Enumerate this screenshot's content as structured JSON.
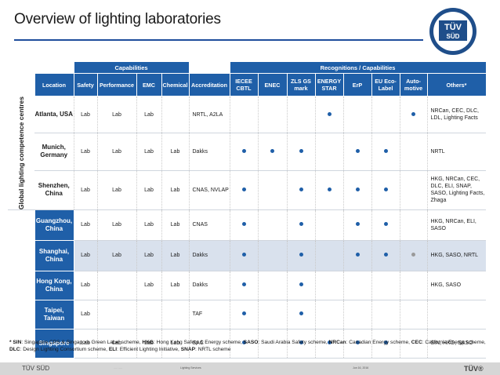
{
  "title": "Overview of lighting laboratories",
  "logo": {
    "text": "TÜV SÜD"
  },
  "headers": {
    "capabilities": "Capabilities",
    "recognitions": "Recognitions / Capabilities",
    "location": "Location",
    "safety": "Safety",
    "performance": "Performance",
    "emc": "EMC",
    "chemical": "Chemical",
    "accreditation": "Accreditation",
    "iecee": "IECEE CBTL",
    "enec": "ENEC",
    "zls": "ZLS GS mark",
    "energy": "ENERGY STAR",
    "erp": "ErP",
    "eu": "EU Eco-Label",
    "auto": "Auto-motive",
    "others": "Others*"
  },
  "side_label": "Global lighting competence centres",
  "rows": [
    {
      "loc": "Atlanta, USA",
      "safety": "Lab",
      "perf": "Lab",
      "emc": "Lab",
      "chem": "",
      "acc": "NRTL, A2LA",
      "iecee": false,
      "enec": false,
      "zls": false,
      "energy": true,
      "erp": false,
      "eu": false,
      "auto": "blue",
      "others": "NRCan, CEC, DLC, LDL, Lighting Facts"
    },
    {
      "loc": "Munich, Germany",
      "safety": "Lab",
      "perf": "Lab",
      "emc": "Lab",
      "chem": "Lab",
      "acc": "Dakks",
      "iecee": true,
      "enec": true,
      "zls": true,
      "energy": false,
      "erp": true,
      "eu": true,
      "auto": "",
      "others": "NRTL"
    },
    {
      "loc": "Shenzhen, China",
      "safety": "Lab",
      "perf": "Lab",
      "emc": "Lab",
      "chem": "Lab",
      "acc": "CNAS, NVLAP",
      "iecee": true,
      "enec": false,
      "zls": true,
      "energy": true,
      "erp": true,
      "eu": true,
      "auto": "",
      "others": "HKG, NRCan, CEC, DLC, ELI, SNAP, SASO, Lighting Facts, Zhaga"
    },
    {
      "loc": "Guangzhou, China",
      "safety": "Lab",
      "perf": "Lab",
      "emc": "Lab",
      "chem": "Lab",
      "acc": "CNAS",
      "iecee": true,
      "enec": false,
      "zls": true,
      "energy": false,
      "erp": true,
      "eu": true,
      "auto": "",
      "others": "HKG, NRCan, ELI, SASO"
    },
    {
      "loc": "Shanghai, China",
      "safety": "Lab",
      "perf": "Lab",
      "emc": "Lab",
      "chem": "Lab",
      "acc": "Dakks",
      "iecee": true,
      "enec": false,
      "zls": true,
      "energy": false,
      "erp": true,
      "eu": true,
      "auto": "grey",
      "others": "HKG, SASO, NRTL"
    },
    {
      "loc": "Hong Kong, China",
      "safety": "Lab",
      "perf": "",
      "emc": "Lab",
      "chem": "Lab",
      "acc": "Dakks",
      "iecee": true,
      "enec": false,
      "zls": true,
      "energy": false,
      "erp": false,
      "eu": false,
      "auto": "",
      "others": "HKG, SASO"
    },
    {
      "loc": "Taipei, Taiwan",
      "safety": "Lab",
      "perf": "",
      "emc": "",
      "chem": "",
      "acc": "TAF",
      "iecee": true,
      "enec": false,
      "zls": true,
      "energy": false,
      "erp": false,
      "eu": false,
      "auto": "",
      "others": ""
    },
    {
      "loc": "Singapore",
      "safety": "Lab",
      "perf": "Lab",
      "emc": "Lab",
      "chem": "Lab",
      "acc": "SAC",
      "iecee": true,
      "enec": false,
      "zls": true,
      "energy": true,
      "erp": true,
      "eu": true,
      "auto": "",
      "others": "SIN, HKG, SASO"
    }
  ],
  "footnote": [
    {
      "b": "* SIN",
      "t": ": Singapore CPS & Singapore Green Label scheme, "
    },
    {
      "b": "HKG",
      "t": ": Hong Kong Safety & Energy scheme, "
    },
    {
      "b": "SASO",
      "t": ": Saudi Arabia Safety scheme, "
    },
    {
      "b": "NRCan",
      "t": ": Canadian Energy scheme, "
    },
    {
      "b": "CEC",
      "t": ": California Energy scheme,"
    },
    {
      "b": "DLC",
      "t": ": Design Lighting Consortium scheme, "
    },
    {
      "b": "ELI",
      "t": ": Efficient Lighting Initiative, "
    },
    {
      "b": "SNAP",
      "t": ": NRTL scheme"
    }
  ],
  "footer": {
    "left": "TÜV SÜD",
    "mid1": "····· ·····",
    "mid2": "Lighting Services",
    "mid3": "Jun 16, 2016",
    "right": "TÜV®"
  }
}
